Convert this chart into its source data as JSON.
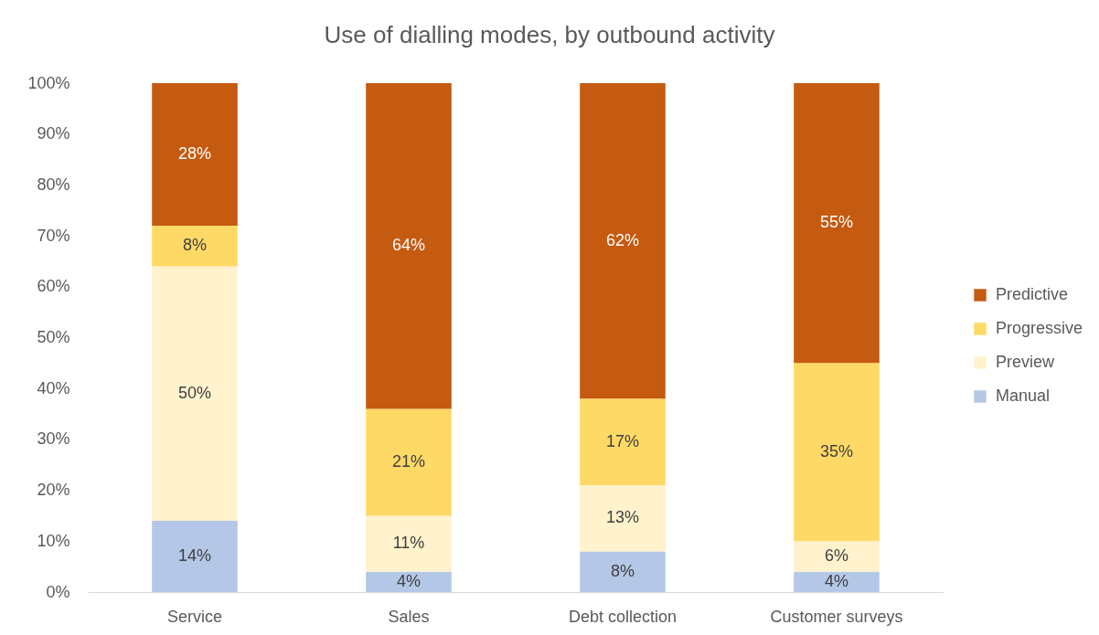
{
  "chart_data": {
    "type": "bar",
    "title": "Use of dialling modes, by outbound activity",
    "categories": [
      "Service",
      "Sales",
      "Debt collection",
      "Customer surveys"
    ],
    "stacked": true,
    "series": [
      {
        "name": "Manual",
        "color": "#b4c7e7",
        "values": [
          14,
          4,
          8,
          4
        ],
        "value_labels": [
          "14%",
          "4%",
          "8%",
          "4%"
        ]
      },
      {
        "name": "Preview",
        "color": "#fff2cc",
        "values": [
          50,
          11,
          13,
          6
        ],
        "value_labels": [
          "50%",
          "11%",
          "13%",
          "6%"
        ]
      },
      {
        "name": "Progressive",
        "color": "#ffd966",
        "values": [
          8,
          21,
          17,
          35
        ],
        "value_labels": [
          "8%",
          "21%",
          "17%",
          "35%"
        ]
      },
      {
        "name": "Predictive",
        "color": "#c55a11",
        "values": [
          28,
          64,
          62,
          55
        ],
        "value_labels": [
          "28%",
          "64%",
          "62%",
          "55%"
        ]
      }
    ],
    "ylim": [
      0,
      100
    ],
    "yticks": [
      {
        "value": 0,
        "label": "0%"
      },
      {
        "value": 10,
        "label": "10%"
      },
      {
        "value": 20,
        "label": "20%"
      },
      {
        "value": 30,
        "label": "30%"
      },
      {
        "value": 40,
        "label": "40%"
      },
      {
        "value": 50,
        "label": "50%"
      },
      {
        "value": 60,
        "label": "60%"
      },
      {
        "value": 70,
        "label": "70%"
      },
      {
        "value": 80,
        "label": "80%"
      },
      {
        "value": 90,
        "label": "90%"
      },
      {
        "value": 100,
        "label": "100%"
      }
    ],
    "grid": false,
    "legend": "right"
  }
}
